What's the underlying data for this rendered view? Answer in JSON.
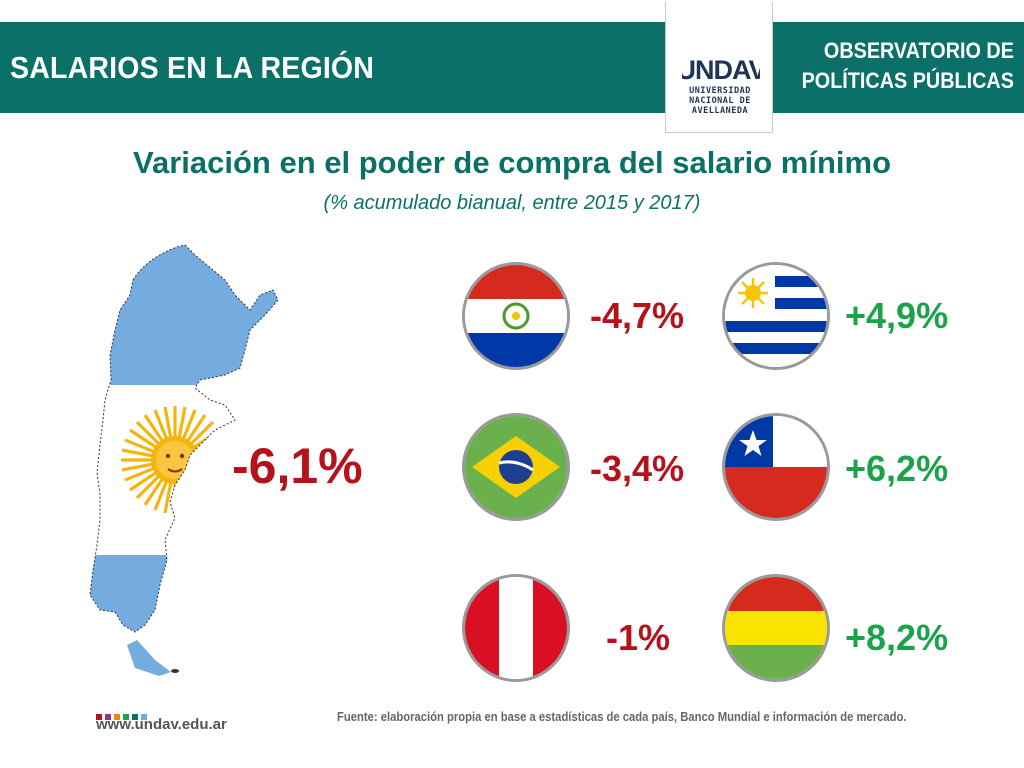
{
  "header": {
    "title": "SALARIOS EN LA REGIÓN",
    "org_line1": "OBSERVATORIO DE",
    "org_line2": "POLÍTICAS PÚBLICAS"
  },
  "logo": {
    "mark": "UNDAV",
    "line1": "UNIVERSIDAD",
    "line2": "NACIONAL DE",
    "line3": "AVELLANEDA"
  },
  "main": {
    "title": "Variación en el poder de compra del salario mínimo",
    "subtitle": "(% acumulado bianual, entre 2015 y 2017)"
  },
  "argentina": {
    "icon": "argentina-map",
    "value": "-6,1%",
    "value_num": -6.1
  },
  "countries": [
    {
      "flag": "paraguay-flag",
      "value": "-4,7%",
      "value_num": -4.7
    },
    {
      "flag": "uruguay-flag",
      "value": "+4,9%",
      "value_num": 4.9
    },
    {
      "flag": "brazil-flag",
      "value": "-3,4%",
      "value_num": -3.4
    },
    {
      "flag": "chile-flag",
      "value": "+6,2%",
      "value_num": 6.2
    },
    {
      "flag": "peru-flag",
      "value": "-1%",
      "value_num": -1
    },
    {
      "flag": "bolivia-flag",
      "value": "+8,2%",
      "value_num": 8.2
    }
  ],
  "colors": {
    "header": "#0b7168",
    "negative": "#b5121b",
    "positive": "#1aa34a",
    "argentina_blue": "#74acdf"
  },
  "footer": {
    "website": "www.undav.edu.ar",
    "source": "Fuente: elaboración propia en base a estadísticas de cada país, Banco Mundial e información de mercado.",
    "dot_colors": [
      "#b5121b",
      "#8e3a8a",
      "#e68a00",
      "#1aa34a",
      "#0b7168",
      "#74acdf"
    ]
  }
}
